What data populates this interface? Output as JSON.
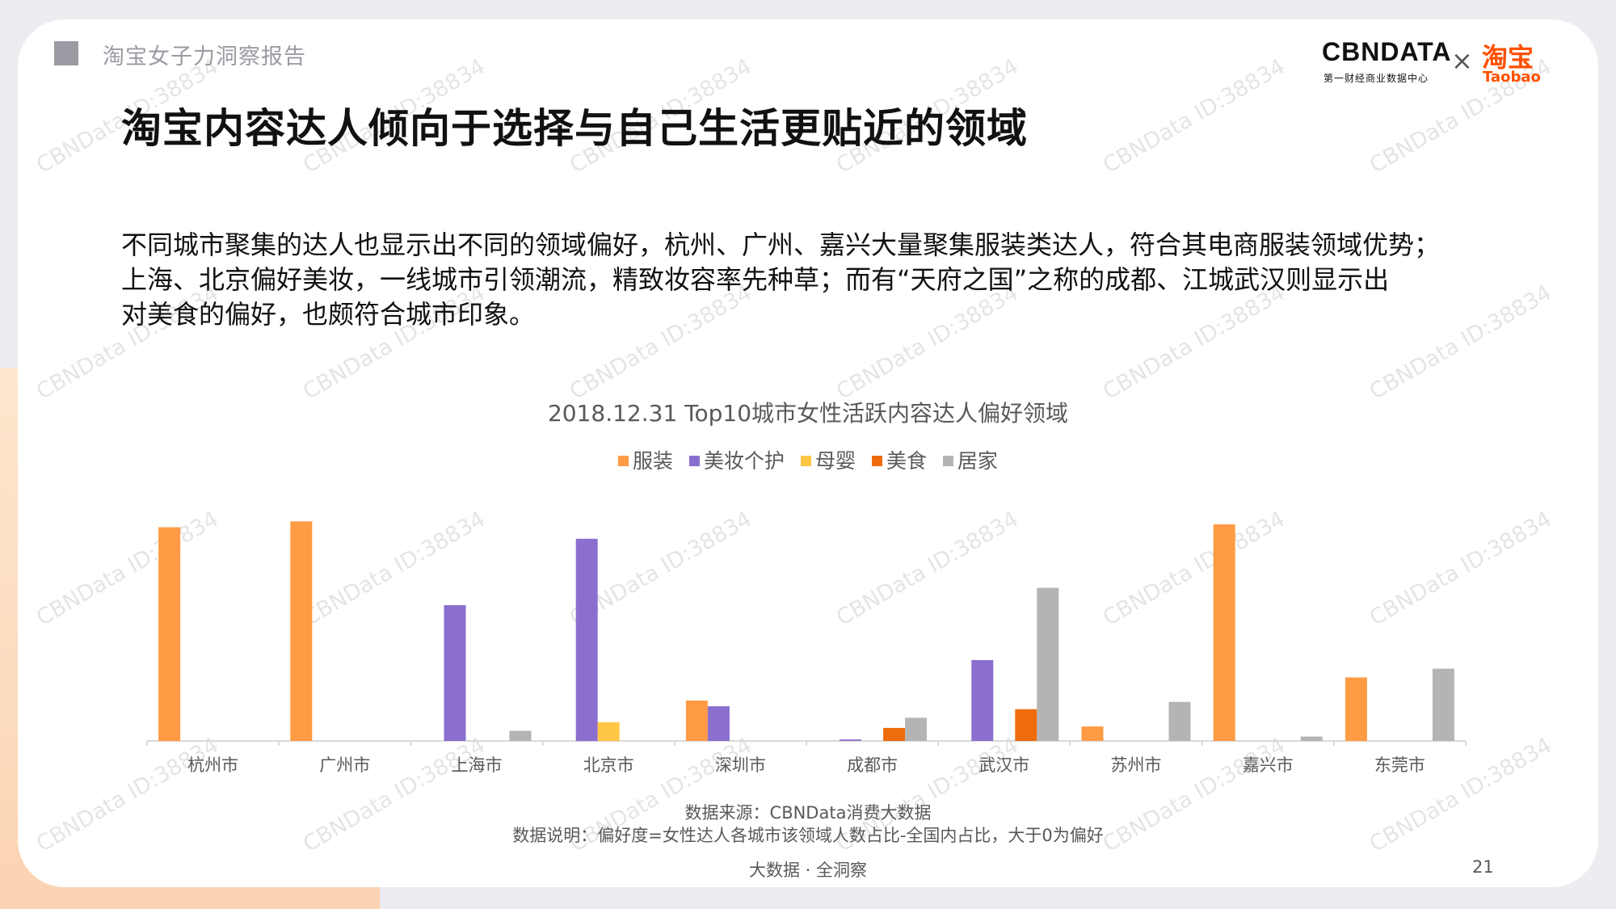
{
  "header": {
    "report_name": "淘宝女子力洞察报告",
    "page_title": "淘宝内容达人倾向于选择与自己生活更贴近的领域"
  },
  "brand": {
    "cbn_logo": "CBNDATA",
    "cbn_sub": "第一财经商业数据中心",
    "times": "×",
    "taobao_cn": "淘宝",
    "taobao_en": "Taobao"
  },
  "description": {
    "line1": "不同城市聚集的达人也显示出不同的领域偏好，杭州、广州、嘉兴大量聚集服装类达人，符合其电商服装领域优势；",
    "line2": "上海、北京偏好美妆，一线城市引领潮流，精致妆容率先种草；而有“天府之国”之称的成都、江城武汉则显示出",
    "line3": "对美食的偏好，也颇符合城市印象。"
  },
  "chart_data": {
    "type": "bar",
    "title": "2018.12.31 Top10城市女性活跃内容达人偏好领域",
    "categories": [
      "杭州市",
      "广州市",
      "上海市",
      "北京市",
      "深圳市",
      "成都市",
      "武汉市",
      "苏州市",
      "嘉兴市",
      "东莞市"
    ],
    "series": [
      {
        "name": "服装",
        "color": "#ff9b45",
        "values": [
          7.4,
          7.6,
          0,
          0,
          1.4,
          0,
          0,
          0.5,
          7.5,
          2.2
        ]
      },
      {
        "name": "美妆个护",
        "color": "#8b6fcf",
        "values": [
          0,
          0,
          4.7,
          7.0,
          1.2,
          0.05,
          2.8,
          0,
          0,
          0
        ]
      },
      {
        "name": "母婴",
        "color": "#ffc745",
        "values": [
          0,
          0,
          0,
          0.65,
          0,
          0,
          0,
          0,
          0,
          0
        ]
      },
      {
        "name": "美食",
        "color": "#ef6c0c",
        "values": [
          0,
          0,
          0,
          0,
          0,
          0.45,
          1.1,
          0,
          0,
          0
        ]
      },
      {
        "name": "居家",
        "color": "#b4b4b4",
        "values": [
          0,
          0,
          0.35,
          0,
          0,
          0.8,
          5.3,
          1.35,
          0.15,
          2.5
        ]
      }
    ],
    "ylim": [
      0,
      8
    ],
    "grid": false,
    "legend_position": "top-center",
    "xlabel": "",
    "ylabel": ""
  },
  "footer": {
    "source": "数据来源：CBNData消费大数据",
    "note": "数据说明：偏好度=女性达人各城市该领域人数占比-全国内占比，大于0为偏好",
    "tag": "大数据 · 全洞察",
    "page_number": "21"
  },
  "watermark": {
    "text": "CBNData ID:38834"
  }
}
